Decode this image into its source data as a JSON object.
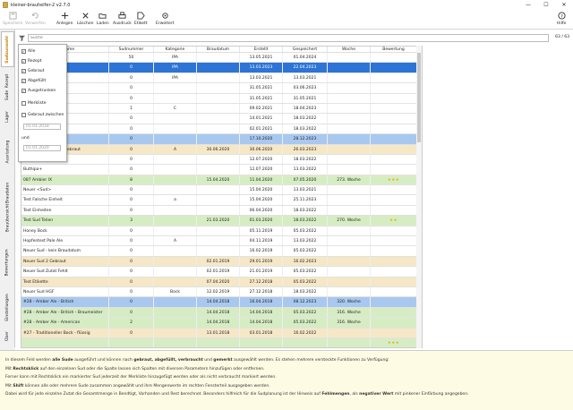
{
  "window": {
    "title": "kleiner-brauhelfer-2 v2.7.0",
    "close": "✕",
    "minimize": "—",
    "maximize": "☐"
  },
  "toolbar": {
    "save": "Speichern",
    "discard": "Verwerfen",
    "add": "Anlegen",
    "delete": "Löschen",
    "load": "Laden",
    "print": "Ausdruck",
    "label": "Etikett",
    "advanced": "Erweitert",
    "help": "Hilfe"
  },
  "sidebar": {
    "tabs": [
      "Sudauswahl",
      "Rezept",
      "Sude",
      "Lager",
      "Ausrüstung",
      "Braudaten",
      "Brauübersicht",
      "Bewertungen",
      "Einstellungen",
      "Über"
    ]
  },
  "search": {
    "placeholder": "Suche",
    "count": "63 / 63"
  },
  "filter": {
    "all": "Alle",
    "planned": "Rezept",
    "brewed": "Gebraut",
    "filled": "Abgefüllt",
    "consumed": "Ausgetrunken",
    "marked": "Merkliste",
    "brewed_between": "Gebraut zwischen",
    "date_from": "01.01.2018",
    "and": "und",
    "date_to": "01.01.2020"
  },
  "grid": {
    "headers": [
      "Sudname",
      "Sudnummer",
      "Kategorie",
      "Braudatum",
      "Erstellt",
      "Gespeichert",
      "Woche",
      "Bewertung"
    ],
    "rows": [
      {
        "name": "",
        "nr": "50",
        "cat": "IPA",
        "brew": "",
        "created": "13.05.2021",
        "saved": "01.04.2024",
        "week": "",
        "rating": "",
        "style": "plain"
      },
      {
        "name": "",
        "nr": "0",
        "cat": "IPA",
        "brew": "",
        "created": "13.03.2023",
        "saved": "22.04.2023",
        "week": "",
        "rating": "",
        "style": "sel"
      },
      {
        "name": "",
        "nr": "0",
        "cat": "IPA",
        "brew": "",
        "created": "13.03.2021",
        "saved": "13.03.2021",
        "week": "",
        "rating": "",
        "style": "plain"
      },
      {
        "name": "",
        "nr": "0",
        "cat": "",
        "brew": "",
        "created": "31.05.2021",
        "saved": "03.06.2023",
        "week": "",
        "rating": "",
        "style": "plain"
      },
      {
        "name": "",
        "nr": "0",
        "cat": "",
        "brew": "",
        "created": "31.05.2021",
        "saved": "31.05.2021",
        "week": "",
        "rating": "",
        "style": "plain"
      },
      {
        "name": "Pale Ale (SNPA)",
        "nr": "1",
        "cat": "C",
        "brew": "",
        "created": "09.02.2021",
        "saved": "18.04.2023",
        "week": "",
        "rating": "",
        "style": "plain"
      },
      {
        "name": "",
        "nr": "0",
        "cat": "",
        "brew": "",
        "created": "14.01.2021",
        "saved": "18.03.2022",
        "week": "",
        "rating": "",
        "style": "plain"
      },
      {
        "name": "",
        "nr": "0",
        "cat": "",
        "brew": "",
        "created": "02.01.2021",
        "saved": "18.03.2022",
        "week": "",
        "rating": "",
        "style": "plain"
      },
      {
        "name": "",
        "nr": "0",
        "cat": "",
        "brew": "",
        "created": "17.10.2020",
        "saved": "28.12.2023",
        "week": "",
        "rating": "",
        "style": "lsel"
      },
      {
        "name": "Hopfentest Pale Ale Gebraut",
        "nr": "0",
        "cat": "A",
        "brew": "30.06.2020",
        "created": "30.06.2020",
        "saved": "26.03.2023",
        "week": "",
        "rating": "",
        "style": "bg"
      },
      {
        "name": "Test pH",
        "nr": "0",
        "cat": "",
        "brew": "",
        "created": "12.07.2020",
        "saved": "18.03.2022",
        "week": "",
        "rating": "",
        "style": "plain"
      },
      {
        "name": "Buthipa+",
        "nr": "0",
        "cat": "",
        "brew": "",
        "created": "12.07.2020",
        "saved": "13.03.2022",
        "week": "",
        "rating": "",
        "style": "plain"
      },
      {
        "name": "087 Ambier IX",
        "nr": "8",
        "cat": "",
        "brew": "15.04.2020",
        "created": "11.04.2020",
        "saved": "07.05.2020",
        "week": "273. Woche",
        "rating": "★★★",
        "style": "bgr"
      },
      {
        "name": "Neuer <Sud>",
        "nr": "0",
        "cat": "",
        "brew": "",
        "created": "15.04.2020",
        "saved": "13.03.2021",
        "week": "",
        "rating": "",
        "style": "plain"
      },
      {
        "name": "Test Falsche Einheit",
        "nr": "0",
        "cat": "a",
        "brew": "",
        "created": "15.04.2020",
        "saved": "25.11.2023",
        "week": "",
        "rating": "",
        "style": "plain"
      },
      {
        "name": "Test Einheiten",
        "nr": "0",
        "cat": "",
        "brew": "",
        "created": "06.04.2020",
        "saved": "18.03.2022",
        "week": "",
        "rating": "",
        "style": "plain"
      },
      {
        "name": "Test Sud Teilen",
        "nr": "3",
        "cat": "",
        "brew": "21.03.2020",
        "created": "01.03.2020",
        "saved": "18.03.2022",
        "week": "270. Woche",
        "rating": "★★",
        "style": "bgr"
      },
      {
        "name": "Honey Bock",
        "nr": "0",
        "cat": "",
        "brew": "",
        "created": "05.11.2019",
        "saved": "05.03.2022",
        "week": "",
        "rating": "",
        "style": "plain"
      },
      {
        "name": "Hopfentest Pale Ale",
        "nr": "0",
        "cat": "A",
        "brew": "",
        "created": "04.11.2019",
        "saved": "13.03.2022",
        "week": "",
        "rating": "",
        "style": "plain"
      },
      {
        "name": "Neuer Sud - kein Braudatum",
        "nr": "0",
        "cat": "",
        "brew": "",
        "created": "16.02.2019",
        "saved": "05.03.2022",
        "week": "",
        "rating": "",
        "style": "plain"
      },
      {
        "name": "Neuer Sud 2 Gebraut",
        "nr": "0",
        "cat": "",
        "brew": "02.01.2019",
        "created": "29.01.2019",
        "saved": "16.02.2023",
        "week": "",
        "rating": "",
        "style": "bg"
      },
      {
        "name": "Neuer Sud Zutat Fehlt",
        "nr": "0",
        "cat": "",
        "brew": "02.01.2019",
        "created": "21.01.2019",
        "saved": "05.03.2022",
        "week": "",
        "rating": "",
        "style": "plain"
      },
      {
        "name": "Test Etikette",
        "nr": "0",
        "cat": "",
        "brew": "07.04.2020",
        "created": "27.12.2018",
        "saved": "05.03.2022",
        "week": "",
        "rating": "",
        "style": "bg"
      },
      {
        "name": "Neuer Sud HGF",
        "nr": "0",
        "cat": "Bock",
        "brew": "12.02.2019",
        "created": "27.12.2018",
        "saved": "18.03.2022",
        "week": "",
        "rating": "",
        "style": "plain"
      },
      {
        "name": "#28 - Amber Ale - British",
        "nr": "0",
        "cat": "",
        "brew": "14.04.2018",
        "created": "16.04.2018",
        "saved": "08.12.2023",
        "week": "320. Woche",
        "rating": "",
        "style": "lsel"
      },
      {
        "name": "#28 - Amber Ale - British - Braumeister",
        "nr": "0",
        "cat": "",
        "brew": "14.04.2018",
        "created": "14.04.2018",
        "saved": "05.03.2022",
        "week": "316. Woche",
        "rating": "",
        "style": "bgr"
      },
      {
        "name": "#28 - Amber Ale - American",
        "nr": "2",
        "cat": "",
        "brew": "14.04.2018",
        "created": "14.04.2018",
        "saved": "05.03.2022",
        "week": "316. Woche",
        "rating": "",
        "style": "bgr"
      },
      {
        "name": "#27 - Traditioneller Bock - flüssig",
        "nr": "0",
        "cat": "",
        "brew": "13.01.2018",
        "created": "03.01.2018",
        "saved": "16.02.2022",
        "week": "",
        "rating": "",
        "style": "bg"
      },
      {
        "name": "",
        "nr": "",
        "cat": "",
        "brew": "",
        "created": "",
        "saved": "",
        "week": "",
        "rating": "★★★",
        "style": "bgr"
      }
    ]
  },
  "info": {
    "l1a": "In diesem Feld werden ",
    "l1b": "alle Sude",
    "l1c": " ausgeführt und können nach ",
    "l1d": "gebraut, abgefüllt, verbraucht",
    "l1e": " und ",
    "l1f": "gemerkt",
    "l1g": " ausgewählt werden. Es stehen mehrere versteckte Funktionen zu Verfügung:",
    "l2a": "Mit ",
    "l2b": "Rechtsklick",
    "l2c": " auf den einzelnen Sud oder die Spalte lassen sich Spalten mit diversen Parametern hinzufügen oder entfernen.",
    "l3": "Ferner kann mit Rechtsklick ein markierter Sud jederzeit der Merkliste hinzugefügt werden oder als nicht verbraucht markiert werden.",
    "l4a": "Mit ",
    "l4b": "Shift",
    "l4c": " können alle oder mehrere Sude zusammen angewählt und ihre Mengenwerte im rechten Fensterteil ausgegeben werden.",
    "l5a": "Dabei wird für jede einzelne Zutat die Gesamtmenge in Bendtigt, Vorhanden und Rest berechnet. Besonders hilfreich für die Sudplanung ist der Hinweis auf ",
    "l5b": "Fehlmengen",
    "l5c": ", als ",
    "l5d": "negativer Wert",
    "l5e": " mit pinkener Einfärbung angegeben."
  }
}
